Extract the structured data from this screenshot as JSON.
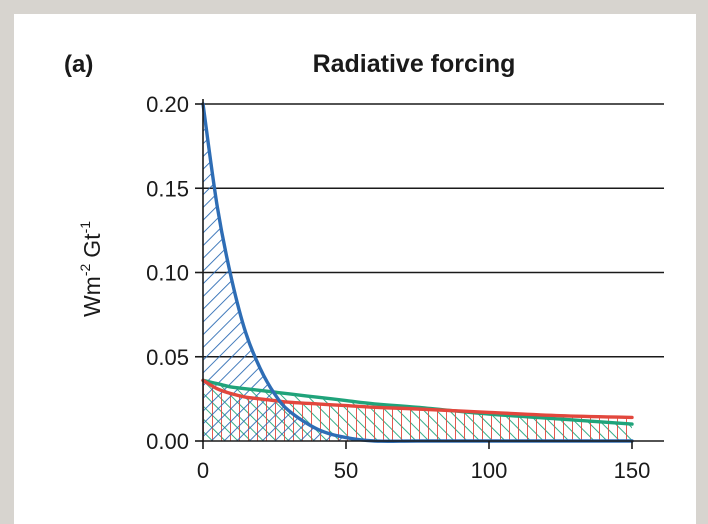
{
  "panel_label": "(a)",
  "colors": {
    "blue": "#2e6db5",
    "green": "#1fa37a",
    "red": "#e2473d",
    "axis": "#1a1a1a",
    "page_background": "#d7d4cf"
  },
  "chart_data": {
    "type": "line",
    "title": "Radiative forcing",
    "xlabel": "",
    "ylabel": "Wm-2 Gt-1",
    "ylabel_parts": {
      "unit1": "Wm",
      "sup1": "-2",
      "unit2": "Gt",
      "sup2": "-1"
    },
    "xlim": [
      0,
      150
    ],
    "ylim": [
      0,
      0.2
    ],
    "x_ticks": [
      "0",
      "50",
      "100",
      "150"
    ],
    "y_ticks": [
      "0.00",
      "0.05",
      "0.10",
      "0.15",
      "0.20"
    ],
    "grid": "horizontal",
    "fill": "hatched area under each curve",
    "x": [
      0,
      5,
      10,
      15,
      20,
      25,
      30,
      40,
      50,
      60,
      75,
      100,
      125,
      150
    ],
    "series": [
      {
        "color": "blue",
        "hatch": "forward-diagonal",
        "values": [
          0.2,
          0.139,
          0.096,
          0.064,
          0.043,
          0.028,
          0.018,
          0.007,
          0.002,
          0.0,
          0.0,
          0.0,
          0.0,
          0.0
        ]
      },
      {
        "color": "green",
        "hatch": "backward-diagonal",
        "values": [
          0.036,
          0.034,
          0.032,
          0.031,
          0.03,
          0.029,
          0.028,
          0.026,
          0.024,
          0.022,
          0.02,
          0.016,
          0.013,
          0.01
        ]
      },
      {
        "color": "red",
        "hatch": "vertical",
        "values": [
          0.036,
          0.031,
          0.028,
          0.026,
          0.025,
          0.024,
          0.023,
          0.022,
          0.021,
          0.02,
          0.019,
          0.017,
          0.015,
          0.014
        ]
      }
    ]
  }
}
